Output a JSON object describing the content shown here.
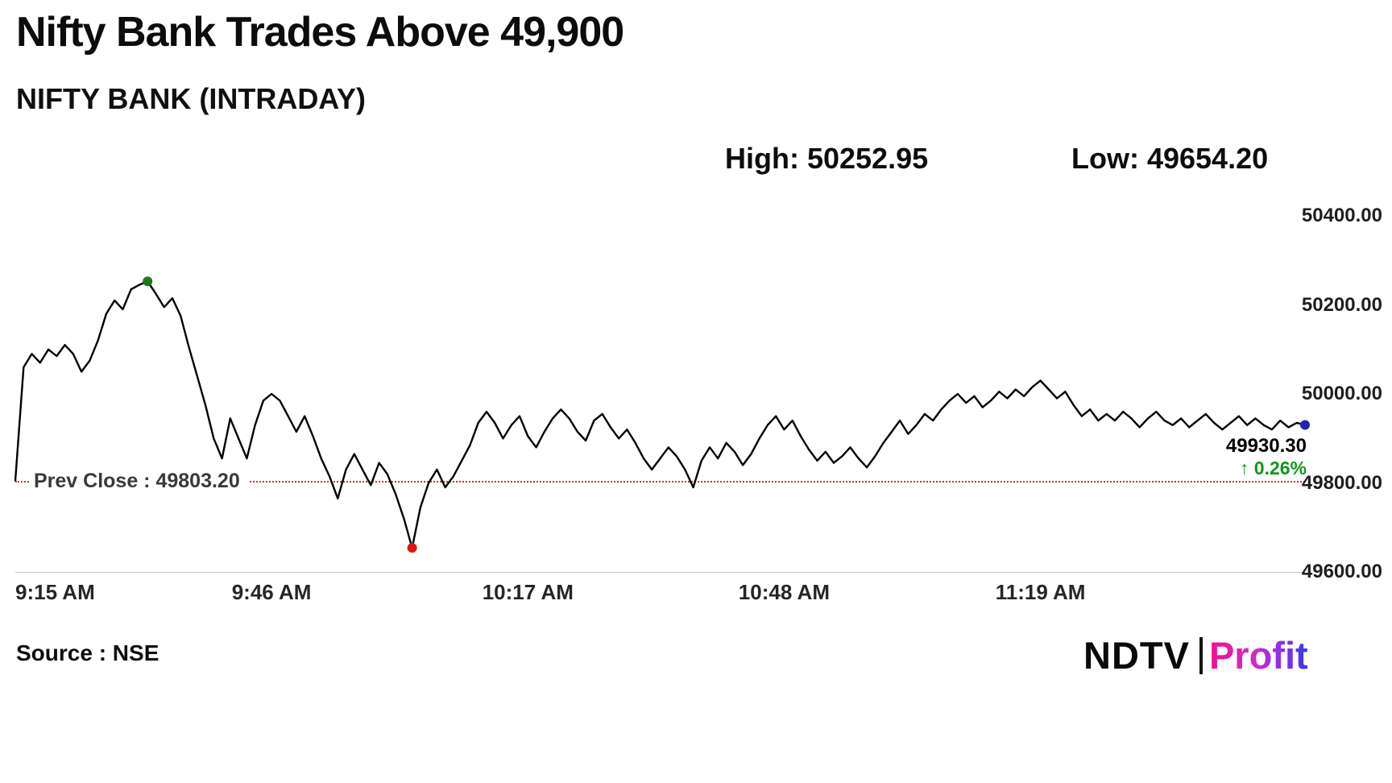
{
  "header": {
    "title": "Nifty Bank Trades Above 49,900",
    "subtitle": "NIFTY BANK (INTRADAY)",
    "high_text": "High: 50252.95",
    "low_text": "Low: 49654.20"
  },
  "chart_data": {
    "type": "line",
    "title": "NIFTY BANK (INTRADAY)",
    "x_unit": "minutes since 9:15 AM",
    "x_tick_labels": [
      "9:15 AM",
      "9:46 AM",
      "10:17 AM",
      "10:48 AM",
      "11:19 AM"
    ],
    "x_tick_minutes": [
      0,
      31,
      62,
      93,
      124
    ],
    "x_range_minutes": [
      0,
      156
    ],
    "y_ticks": [
      49600,
      49800,
      50000,
      50200,
      50400
    ],
    "y_tick_labels": [
      "49600.00",
      "49800.00",
      "50000.00",
      "50200.00",
      "50400.00"
    ],
    "ylim": [
      49600,
      50400
    ],
    "grid": "off",
    "line_color": "#000000",
    "prev_close": 49803.2,
    "prev_close_label": "Prev Close : 49803.20",
    "prev_close_color": "#d2311e",
    "high": 50252.95,
    "low": 49654.2,
    "last": 49930.3,
    "last_label": "49930.30",
    "change_label": "↑ 0.26%",
    "change_color": "#0c9a18",
    "markers": [
      {
        "index": 16,
        "name": "session-high",
        "color": "#1a7a1f"
      },
      {
        "index": 48,
        "name": "session-low",
        "color": "#e21414"
      },
      {
        "index": 156,
        "name": "last-trade",
        "color": "#1f2aa8"
      }
    ],
    "values": [
      49805,
      50060,
      50090,
      50070,
      50100,
      50085,
      50110,
      50090,
      50050,
      50075,
      50120,
      50180,
      50210,
      50190,
      50235,
      50245,
      50252.95,
      50225,
      50195,
      50215,
      50175,
      50105,
      50040,
      49975,
      49900,
      49855,
      49945,
      49900,
      49855,
      49930,
      49985,
      50000,
      49985,
      49950,
      49915,
      49950,
      49905,
      49855,
      49815,
      49765,
      49830,
      49865,
      49830,
      49795,
      49845,
      49820,
      49775,
      49720,
      49654.2,
      49745,
      49800,
      49830,
      49790,
      49815,
      49850,
      49885,
      49935,
      49960,
      49935,
      49900,
      49930,
      49950,
      49905,
      49880,
      49915,
      49945,
      49965,
      49945,
      49915,
      49895,
      49940,
      49955,
      49925,
      49900,
      49920,
      49890,
      49855,
      49830,
      49855,
      49880,
      49860,
      49830,
      49790,
      49850,
      49880,
      49855,
      49890,
      49870,
      49840,
      49865,
      49900,
      49930,
      49950,
      49920,
      49940,
      49905,
      49875,
      49850,
      49870,
      49845,
      49860,
      49880,
      49855,
      49835,
      49860,
      49890,
      49915,
      49940,
      49910,
      49930,
      49955,
      49940,
      49965,
      49985,
      50000,
      49980,
      49995,
      49970,
      49985,
      50005,
      49990,
      50010,
      49995,
      50015,
      50030,
      50010,
      49990,
      50005,
      49975,
      49950,
      49965,
      49940,
      49955,
      49940,
      49960,
      49945,
      49925,
      49945,
      49960,
      49940,
      49930,
      49945,
      49925,
      49940,
      49955,
      49935,
      49920,
      49935,
      49950,
      49930,
      49945,
      49930,
      49920,
      49940,
      49925,
      49935,
      49930.3
    ]
  },
  "footer": {
    "source_text": "Source : NSE",
    "logo": {
      "ndtv": "NDTV",
      "profit": "Profit"
    }
  }
}
